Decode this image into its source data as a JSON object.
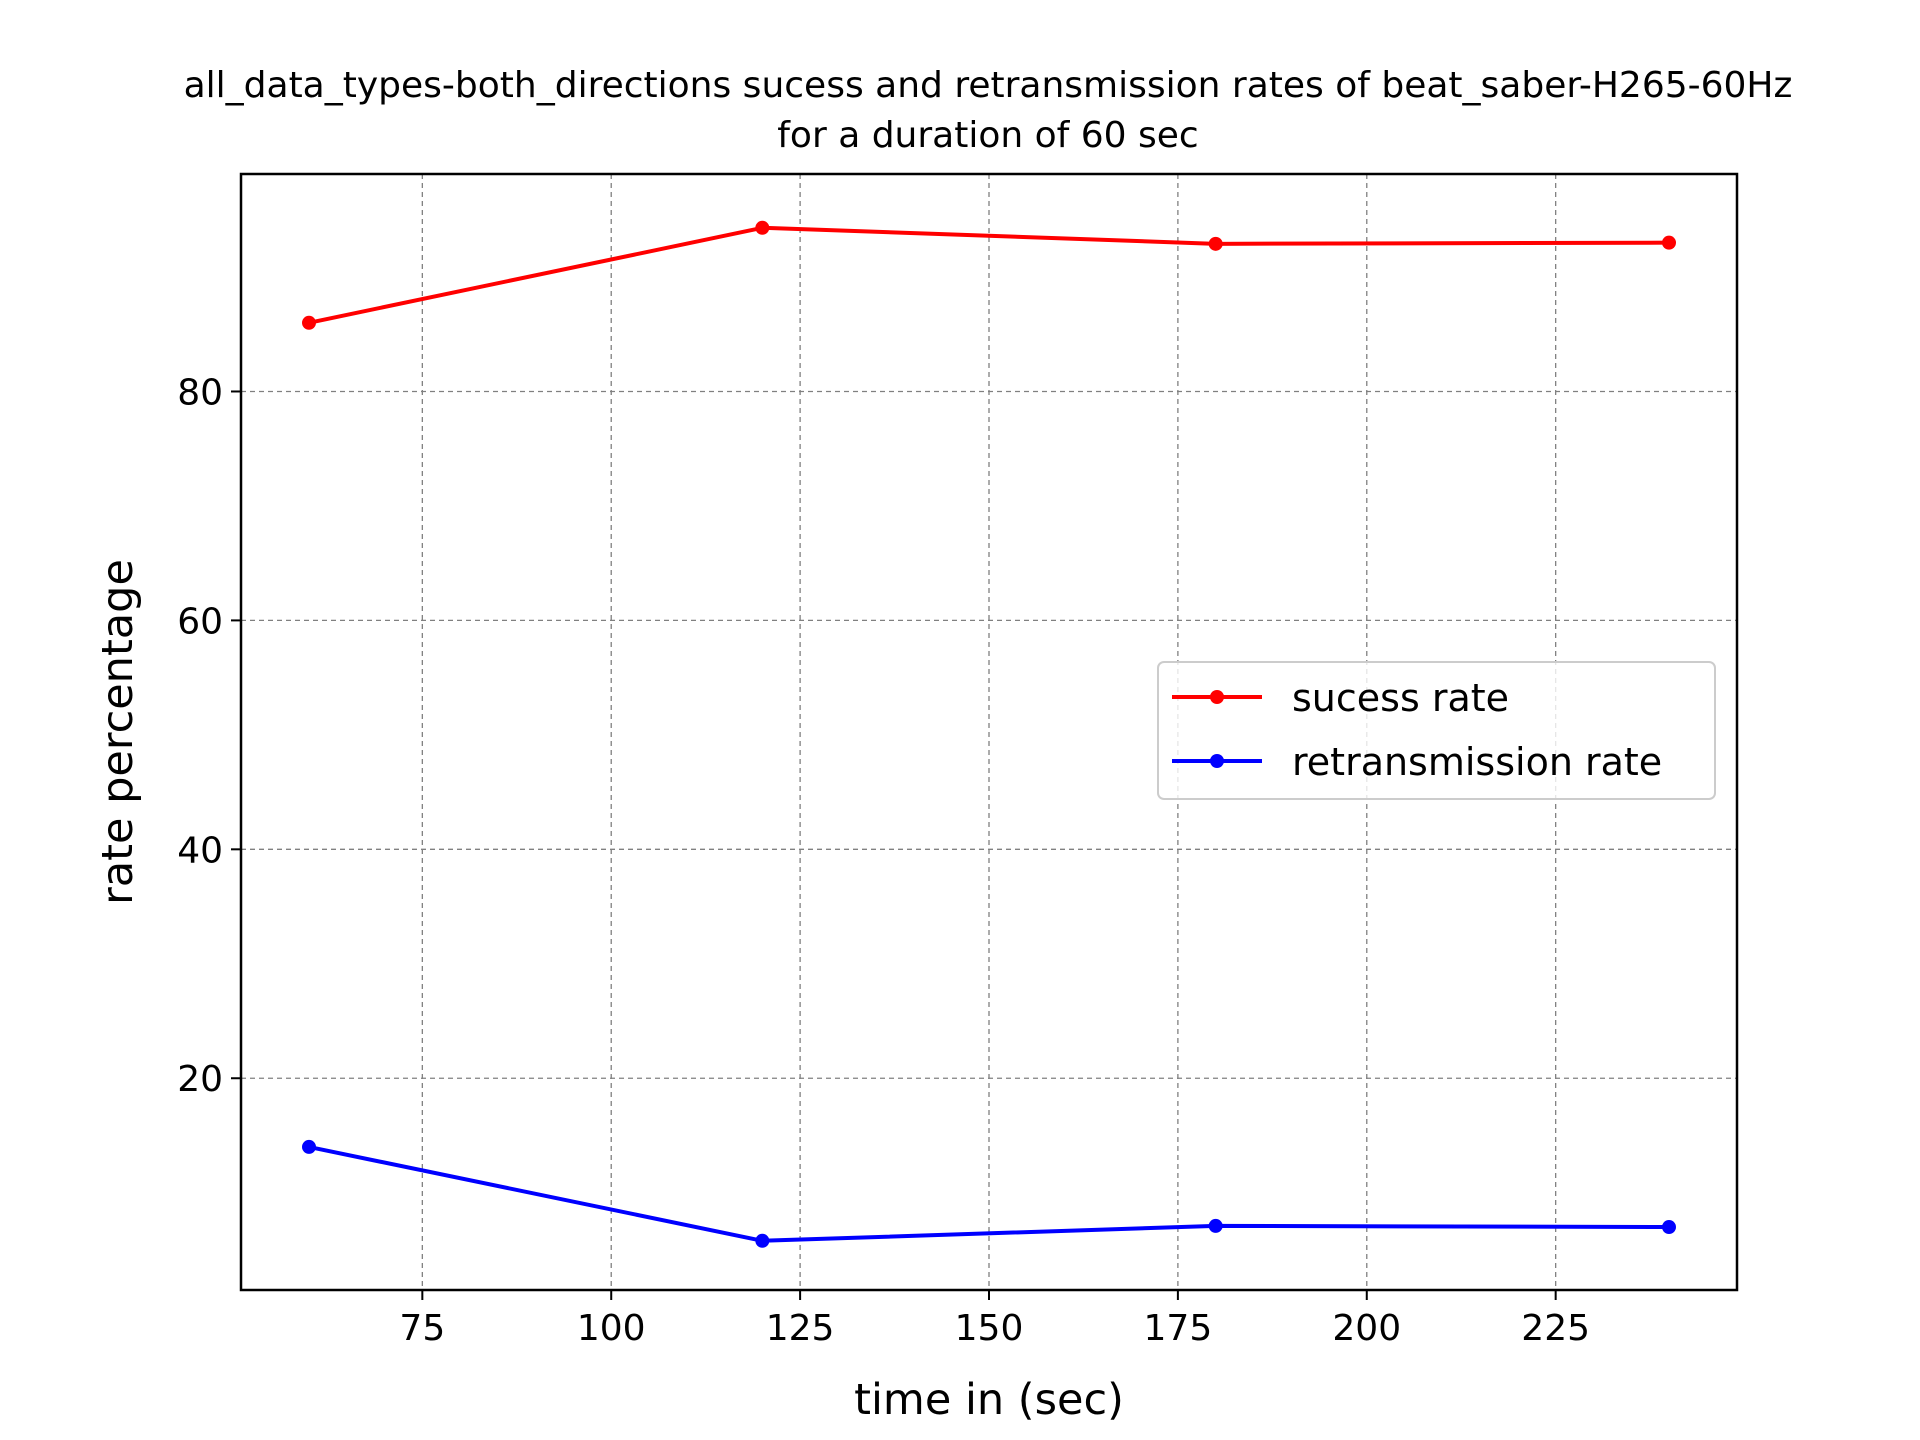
{
  "chart_data": {
    "type": "line",
    "title_line1": "all_data_types-both_directions sucess and retransmission rates of beat_saber-H265-60Hz",
    "title_line2": "for a duration of 60 sec",
    "xlabel": "time in (sec)",
    "ylabel": "rate percentage",
    "xlim": [
      51,
      249
    ],
    "ylim": [
      1.5,
      99
    ],
    "x_ticks": [
      75,
      100,
      125,
      150,
      175,
      200,
      225
    ],
    "y_ticks": [
      20,
      40,
      60,
      80
    ],
    "grid": true,
    "legend_position": "center-right",
    "x": [
      60,
      120,
      180,
      240
    ],
    "series": [
      {
        "name": "sucess rate",
        "color": "#ff0000",
        "values": [
          86.0,
          94.3,
          92.9,
          93.0
        ]
      },
      {
        "name": "retransmission rate",
        "color": "#0000ff",
        "values": [
          14.0,
          5.8,
          7.1,
          7.0
        ]
      }
    ]
  }
}
